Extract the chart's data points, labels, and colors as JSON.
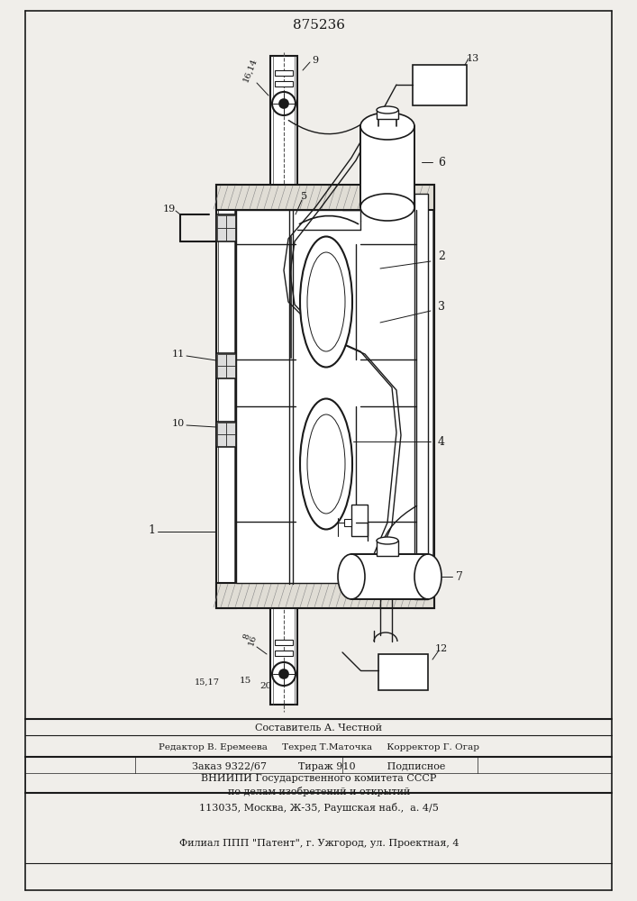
{
  "title": "875236",
  "bg_color": "#f0eeea",
  "line_color": "#1a1a1a",
  "footer_lines": [
    "Составитель А. Честной",
    "Редактор В. Еремеева     Техред Т.Маточка     Корректор Г. Огар",
    "Заказ 9322/67          Тираж 910          Подписное",
    "ВНИИПИ Государственного комитета СССР",
    "по делам изобретений и открытий",
    "113035, Москва, Ж-35, Раушская наб.,  а. 4/5",
    "Филиал ППП \"Патент\", г. Ужгород, ул. Проектная, 4"
  ]
}
